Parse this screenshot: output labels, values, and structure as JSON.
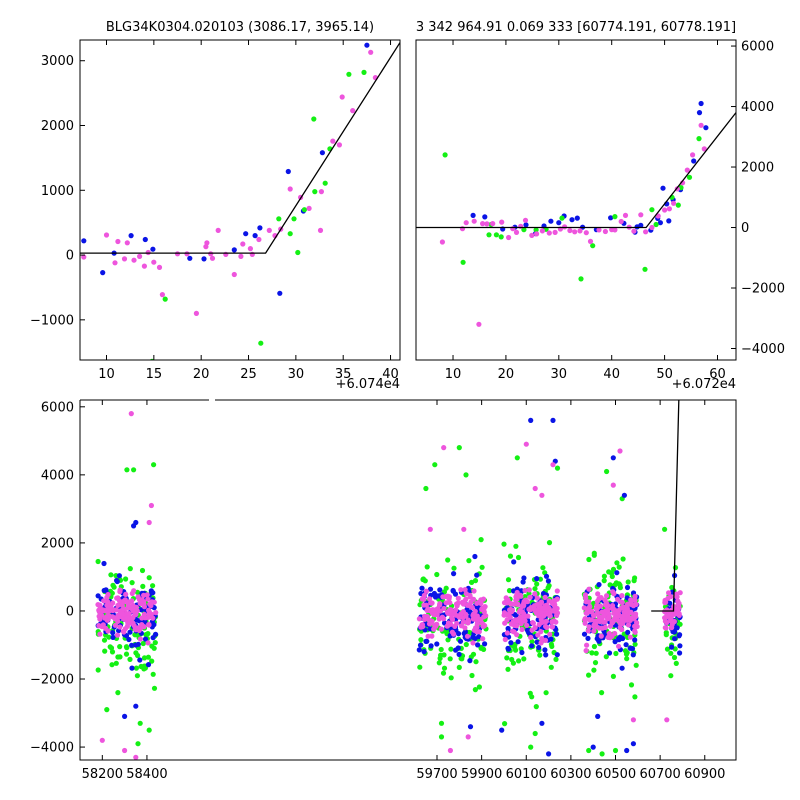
{
  "colors": {
    "blue": "#0a14e6",
    "green": "#14f014",
    "pink": "#ee55dd",
    "model": "#000000"
  },
  "chart_data": [
    {
      "type": "scatter",
      "name": "top-left zoom",
      "title": "BLG34K0304.020103 (3086.17, 3965.14)",
      "offset_label": "+6.074e4",
      "xlim": [
        7.2,
        41.0
      ],
      "ylim": [
        -1620,
        3320
      ],
      "xticks": [
        10,
        15,
        20,
        25,
        30,
        35,
        40
      ],
      "yticks": [
        -1000,
        0,
        1000,
        2000,
        3000
      ],
      "model_line": [
        [
          7.2,
          30
        ],
        [
          26.8,
          30
        ],
        [
          41.0,
          3280
        ]
      ],
      "series": [
        {
          "color": "blue",
          "points": [
            [
              7.6,
              220
            ],
            [
              9.6,
              -270
            ],
            [
              10.8,
              30
            ],
            [
              12.6,
              300
            ],
            [
              14.1,
              240
            ],
            [
              14.9,
              90
            ],
            [
              18.8,
              -50
            ],
            [
              20.3,
              -60
            ],
            [
              23.5,
              80
            ],
            [
              24.7,
              330
            ],
            [
              25.7,
              300
            ],
            [
              26.2,
              420
            ],
            [
              28.3,
              -590
            ],
            [
              29.2,
              1290
            ],
            [
              30.8,
              680
            ],
            [
              32.8,
              1580
            ],
            [
              37.5,
              3240
            ]
          ]
        },
        {
          "color": "green",
          "points": [
            [
              14.8,
              -1640
            ],
            [
              16.2,
              -680
            ],
            [
              26.3,
              -1360
            ],
            [
              28.2,
              560
            ],
            [
              29.4,
              330
            ],
            [
              29.8,
              560
            ],
            [
              30.2,
              40
            ],
            [
              30.9,
              700
            ],
            [
              31.9,
              2100
            ],
            [
              32.0,
              980
            ],
            [
              33.1,
              1110
            ],
            [
              33.6,
              1640
            ],
            [
              35.6,
              2790
            ],
            [
              37.2,
              2820
            ]
          ]
        },
        {
          "color": "pink",
          "points": [
            [
              7.6,
              -30
            ],
            [
              10.0,
              310
            ],
            [
              10.9,
              -120
            ],
            [
              11.2,
              210
            ],
            [
              11.9,
              -60
            ],
            [
              12.2,
              190
            ],
            [
              12.9,
              -80
            ],
            [
              13.5,
              -20
            ],
            [
              14.0,
              -170
            ],
            [
              14.4,
              40
            ],
            [
              15.0,
              -110
            ],
            [
              15.6,
              -190
            ],
            [
              15.9,
              -610
            ],
            [
              17.5,
              20
            ],
            [
              18.5,
              20
            ],
            [
              19.5,
              -900
            ],
            [
              20.5,
              130
            ],
            [
              20.6,
              190
            ],
            [
              21.0,
              20
            ],
            [
              21.2,
              -50
            ],
            [
              21.8,
              380
            ],
            [
              22.6,
              10
            ],
            [
              23.5,
              -300
            ],
            [
              24.2,
              -20
            ],
            [
              24.4,
              170
            ],
            [
              25.2,
              100
            ],
            [
              25.4,
              10
            ],
            [
              26.1,
              240
            ],
            [
              27.2,
              380
            ],
            [
              27.8,
              300
            ],
            [
              28.4,
              400
            ],
            [
              29.4,
              1020
            ],
            [
              30.5,
              890
            ],
            [
              31.4,
              720
            ],
            [
              32.6,
              380
            ],
            [
              32.7,
              980
            ],
            [
              33.9,
              1760
            ],
            [
              34.6,
              1700
            ],
            [
              34.9,
              2440
            ],
            [
              36.0,
              2230
            ],
            [
              37.9,
              3130
            ],
            [
              38.4,
              2740
            ]
          ]
        }
      ]
    },
    {
      "type": "scatter",
      "name": "top-right zoom",
      "title": "3 342 964.91 0.069 333 [60774.191, 60778.191]",
      "offset_label": "+6.072e4",
      "xlim": [
        3.0,
        63.5
      ],
      "ylim": [
        -4380,
        6200
      ],
      "xticks": [
        10,
        20,
        30,
        40,
        50,
        60
      ],
      "yticks": [
        -4000,
        -2000,
        0,
        2000,
        4000,
        6000
      ],
      "yaxis_side": "right",
      "model_line": [
        [
          3.0,
          0
        ],
        [
          46.5,
          0
        ],
        [
          63.5,
          3800
        ]
      ],
      "series": [
        {
          "color": "blue",
          "points": [
            [
              13.8,
              400
            ],
            [
              16.0,
              350
            ],
            [
              19.4,
              -50
            ],
            [
              21.7,
              10
            ],
            [
              23.8,
              90
            ],
            [
              25.6,
              -200
            ],
            [
              27.2,
              50
            ],
            [
              28.5,
              210
            ],
            [
              30.0,
              160
            ],
            [
              31.0,
              380
            ],
            [
              32.5,
              260
            ],
            [
              33.5,
              310
            ],
            [
              34.5,
              10
            ],
            [
              37.1,
              -70
            ],
            [
              39.8,
              320
            ],
            [
              42.3,
              140
            ],
            [
              44.4,
              -150
            ],
            [
              44.8,
              20
            ],
            [
              45.5,
              70
            ],
            [
              47.4,
              -90
            ],
            [
              48.7,
              300
            ],
            [
              49.2,
              160
            ],
            [
              49.7,
              1300
            ],
            [
              50.4,
              780
            ],
            [
              50.8,
              220
            ],
            [
              51.6,
              920
            ],
            [
              53.0,
              1250
            ],
            [
              55.5,
              2200
            ],
            [
              56.6,
              3800
            ],
            [
              56.9,
              4100
            ],
            [
              57.8,
              3300
            ]
          ]
        },
        {
          "color": "green",
          "points": [
            [
              8.5,
              2400
            ],
            [
              11.9,
              -1150
            ],
            [
              16.8,
              -240
            ],
            [
              17.2,
              100
            ],
            [
              18.2,
              -240
            ],
            [
              19.1,
              -310
            ],
            [
              23.4,
              -70
            ],
            [
              25.7,
              -80
            ],
            [
              27.6,
              -60
            ],
            [
              30.6,
              310
            ],
            [
              34.2,
              -1700
            ],
            [
              36.4,
              -600
            ],
            [
              40.6,
              360
            ],
            [
              46.3,
              -1380
            ],
            [
              47.6,
              590
            ],
            [
              48.4,
              100
            ],
            [
              51.4,
              1000
            ],
            [
              52.6,
              740
            ],
            [
              53.1,
              1320
            ],
            [
              54.7,
              1660
            ],
            [
              56.5,
              2940
            ]
          ]
        },
        {
          "color": "pink",
          "points": [
            [
              8.0,
              -480
            ],
            [
              11.8,
              -40
            ],
            [
              12.5,
              160
            ],
            [
              14.0,
              210
            ],
            [
              14.9,
              -3200
            ],
            [
              15.6,
              130
            ],
            [
              16.4,
              120
            ],
            [
              17.5,
              130
            ],
            [
              19.2,
              180
            ],
            [
              20.5,
              -330
            ],
            [
              21.3,
              -40
            ],
            [
              22.0,
              -160
            ],
            [
              22.8,
              40
            ],
            [
              23.7,
              240
            ],
            [
              24.9,
              -260
            ],
            [
              25.8,
              -210
            ],
            [
              26.9,
              -110
            ],
            [
              28.2,
              -180
            ],
            [
              29.3,
              -160
            ],
            [
              30.3,
              -50
            ],
            [
              31.1,
              20
            ],
            [
              32.1,
              -100
            ],
            [
              33.0,
              -140
            ],
            [
              34.0,
              -110
            ],
            [
              35.2,
              -170
            ],
            [
              36.0,
              -460
            ],
            [
              37.6,
              -80
            ],
            [
              38.8,
              -130
            ],
            [
              40.0,
              -70
            ],
            [
              40.6,
              -80
            ],
            [
              41.8,
              200
            ],
            [
              42.6,
              400
            ],
            [
              43.3,
              10
            ],
            [
              44.2,
              -120
            ],
            [
              45.5,
              420
            ],
            [
              46.4,
              -140
            ],
            [
              47.6,
              0
            ],
            [
              48.8,
              380
            ],
            [
              50.0,
              580
            ],
            [
              50.9,
              620
            ],
            [
              51.7,
              800
            ],
            [
              52.4,
              1280
            ],
            [
              53.4,
              1480
            ],
            [
              54.3,
              1900
            ],
            [
              55.3,
              2400
            ],
            [
              56.9,
              3380
            ],
            [
              57.5,
              2600
            ]
          ]
        }
      ]
    },
    {
      "type": "scatter",
      "name": "bottom full light curve",
      "xlim": [
        58100,
        61040
      ],
      "ylim": [
        -4380,
        6200
      ],
      "xticks": [
        58200,
        58400,
        59700,
        59900,
        60100,
        60300,
        60500,
        60700,
        60900
      ],
      "yticks": [
        -4000,
        -2000,
        0,
        2000,
        4000,
        6000
      ],
      "seasons": [
        [
          58180,
          58440
        ],
        [
          59620,
          59920
        ],
        [
          60000,
          60240
        ],
        [
          60360,
          60600
        ],
        [
          60720,
          60790
        ]
      ],
      "model_line": [
        [
          60660,
          0
        ],
        [
          60760,
          0
        ],
        [
          60790,
          7800
        ]
      ],
      "outliers": {
        "blue": [
          [
            58350,
            2600
          ],
          [
            58340,
            2500
          ],
          [
            59870,
            1600
          ],
          [
            60120,
            5600
          ],
          [
            60220,
            5600
          ],
          [
            60230,
            4400
          ],
          [
            60490,
            4500
          ],
          [
            60540,
            3400
          ],
          [
            58300,
            -3100
          ],
          [
            58350,
            -2800
          ],
          [
            59850,
            -3400
          ],
          [
            60200,
            -4200
          ],
          [
            60550,
            -4100
          ],
          [
            60580,
            -3900
          ],
          [
            60400,
            -4000
          ],
          [
            60420,
            -3100
          ],
          [
            60170,
            -3300
          ],
          [
            59990,
            -3500
          ]
        ],
        "green": [
          [
            58310,
            4150
          ],
          [
            58340,
            4150
          ],
          [
            58430,
            4300
          ],
          [
            58360,
            -3900
          ],
          [
            58410,
            -3500
          ],
          [
            58220,
            -2900
          ],
          [
            58370,
            -3300
          ],
          [
            59690,
            4300
          ],
          [
            59800,
            4800
          ],
          [
            59830,
            4000
          ],
          [
            59650,
            3600
          ],
          [
            60060,
            4500
          ],
          [
            60240,
            4200
          ],
          [
            60460,
            4100
          ],
          [
            60530,
            3300
          ],
          [
            60500,
            -4100
          ],
          [
            60440,
            -4200
          ],
          [
            60380,
            -4100
          ],
          [
            59720,
            -3700
          ],
          [
            59720,
            -3300
          ],
          [
            60140,
            -3600
          ],
          [
            60120,
            -4000
          ],
          [
            60720,
            2400
          ]
        ],
        "pink": [
          [
            58330,
            5800
          ],
          [
            58420,
            3100
          ],
          [
            58410,
            2600
          ],
          [
            59670,
            2400
          ],
          [
            59820,
            2400
          ],
          [
            59730,
            4800
          ],
          [
            60100,
            4900
          ],
          [
            60140,
            3600
          ],
          [
            60170,
            3400
          ],
          [
            60220,
            4300
          ],
          [
            60490,
            3700
          ],
          [
            60520,
            4700
          ],
          [
            58300,
            -4100
          ],
          [
            58200,
            -3800
          ],
          [
            58350,
            -4300
          ],
          [
            60730,
            -3200
          ],
          [
            60580,
            -3200
          ],
          [
            59840,
            -3700
          ],
          [
            59760,
            -4100
          ]
        ]
      },
      "series": [
        {
          "color": "blue",
          "name_key": "blue"
        },
        {
          "color": "green",
          "name_key": "green"
        },
        {
          "color": "pink",
          "name_key": "pink"
        }
      ]
    }
  ]
}
